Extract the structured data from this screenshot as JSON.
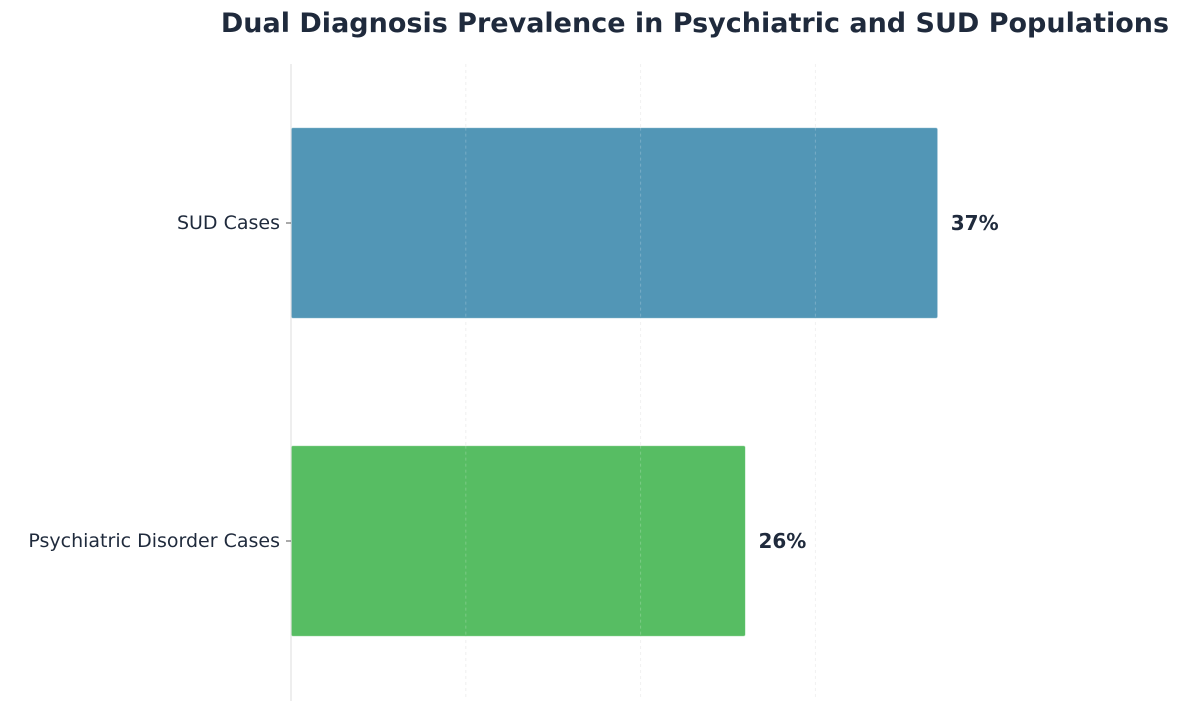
{
  "chart_data": {
    "type": "bar",
    "orientation": "horizontal",
    "title": "Dual Diagnosis Prevalence in Psychiatric and SUD Populations",
    "xlabel": "",
    "ylabel": "",
    "categories": [
      "SUD Cases",
      "Psychiatric Disorder Cases"
    ],
    "values": [
      37,
      26
    ],
    "value_labels": [
      "37%",
      "26%"
    ],
    "bar_colors": [
      "#5296b6",
      "#57bd63"
    ],
    "xlim": [
      0,
      50
    ],
    "x_grid_values": [
      10,
      20,
      30
    ],
    "grid": true,
    "legend": false,
    "x_tick_labels_shown": false
  }
}
